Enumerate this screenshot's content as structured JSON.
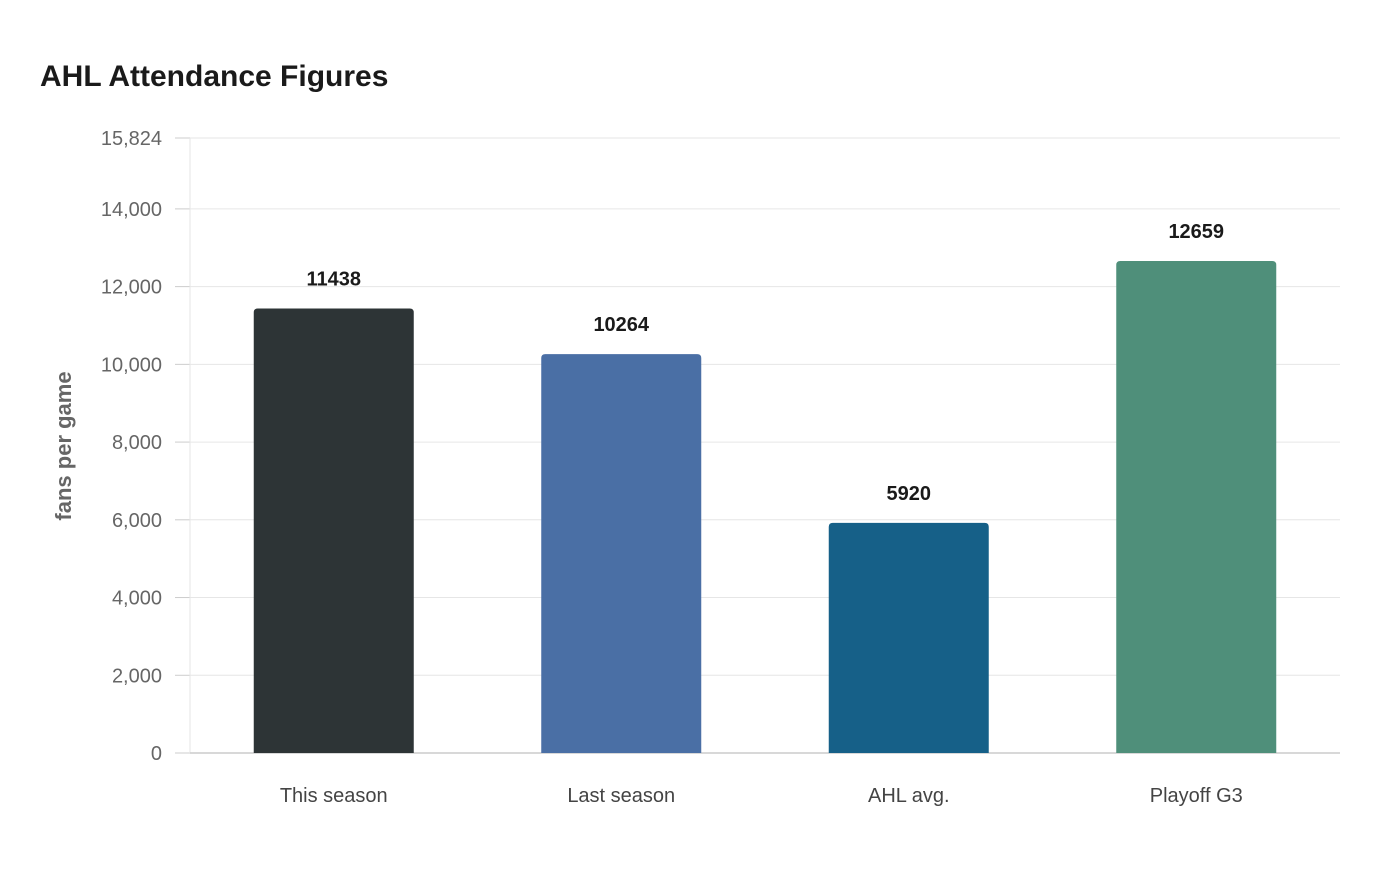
{
  "chart_data": {
    "type": "bar",
    "title": "AHL Attendance Figures",
    "xlabel": "",
    "ylabel": "fans per game",
    "categories": [
      "This season",
      "Last season",
      "AHL avg.",
      "Playoff G3"
    ],
    "values": [
      11438,
      10264,
      5920,
      12659
    ],
    "colors": [
      "#2d3436",
      "#4a6fa5",
      "#166088",
      "#4f8f7a"
    ],
    "ylim": [
      0,
      15824
    ],
    "yticks": [
      0,
      2000,
      4000,
      6000,
      8000,
      10000,
      12000,
      14000,
      15824
    ],
    "ytick_labels": [
      "0",
      "2,000",
      "4,000",
      "6,000",
      "8,000",
      "10,000",
      "12,000",
      "14,000",
      "15,824"
    ],
    "data_labels": true,
    "grid": true,
    "legend": "none"
  }
}
